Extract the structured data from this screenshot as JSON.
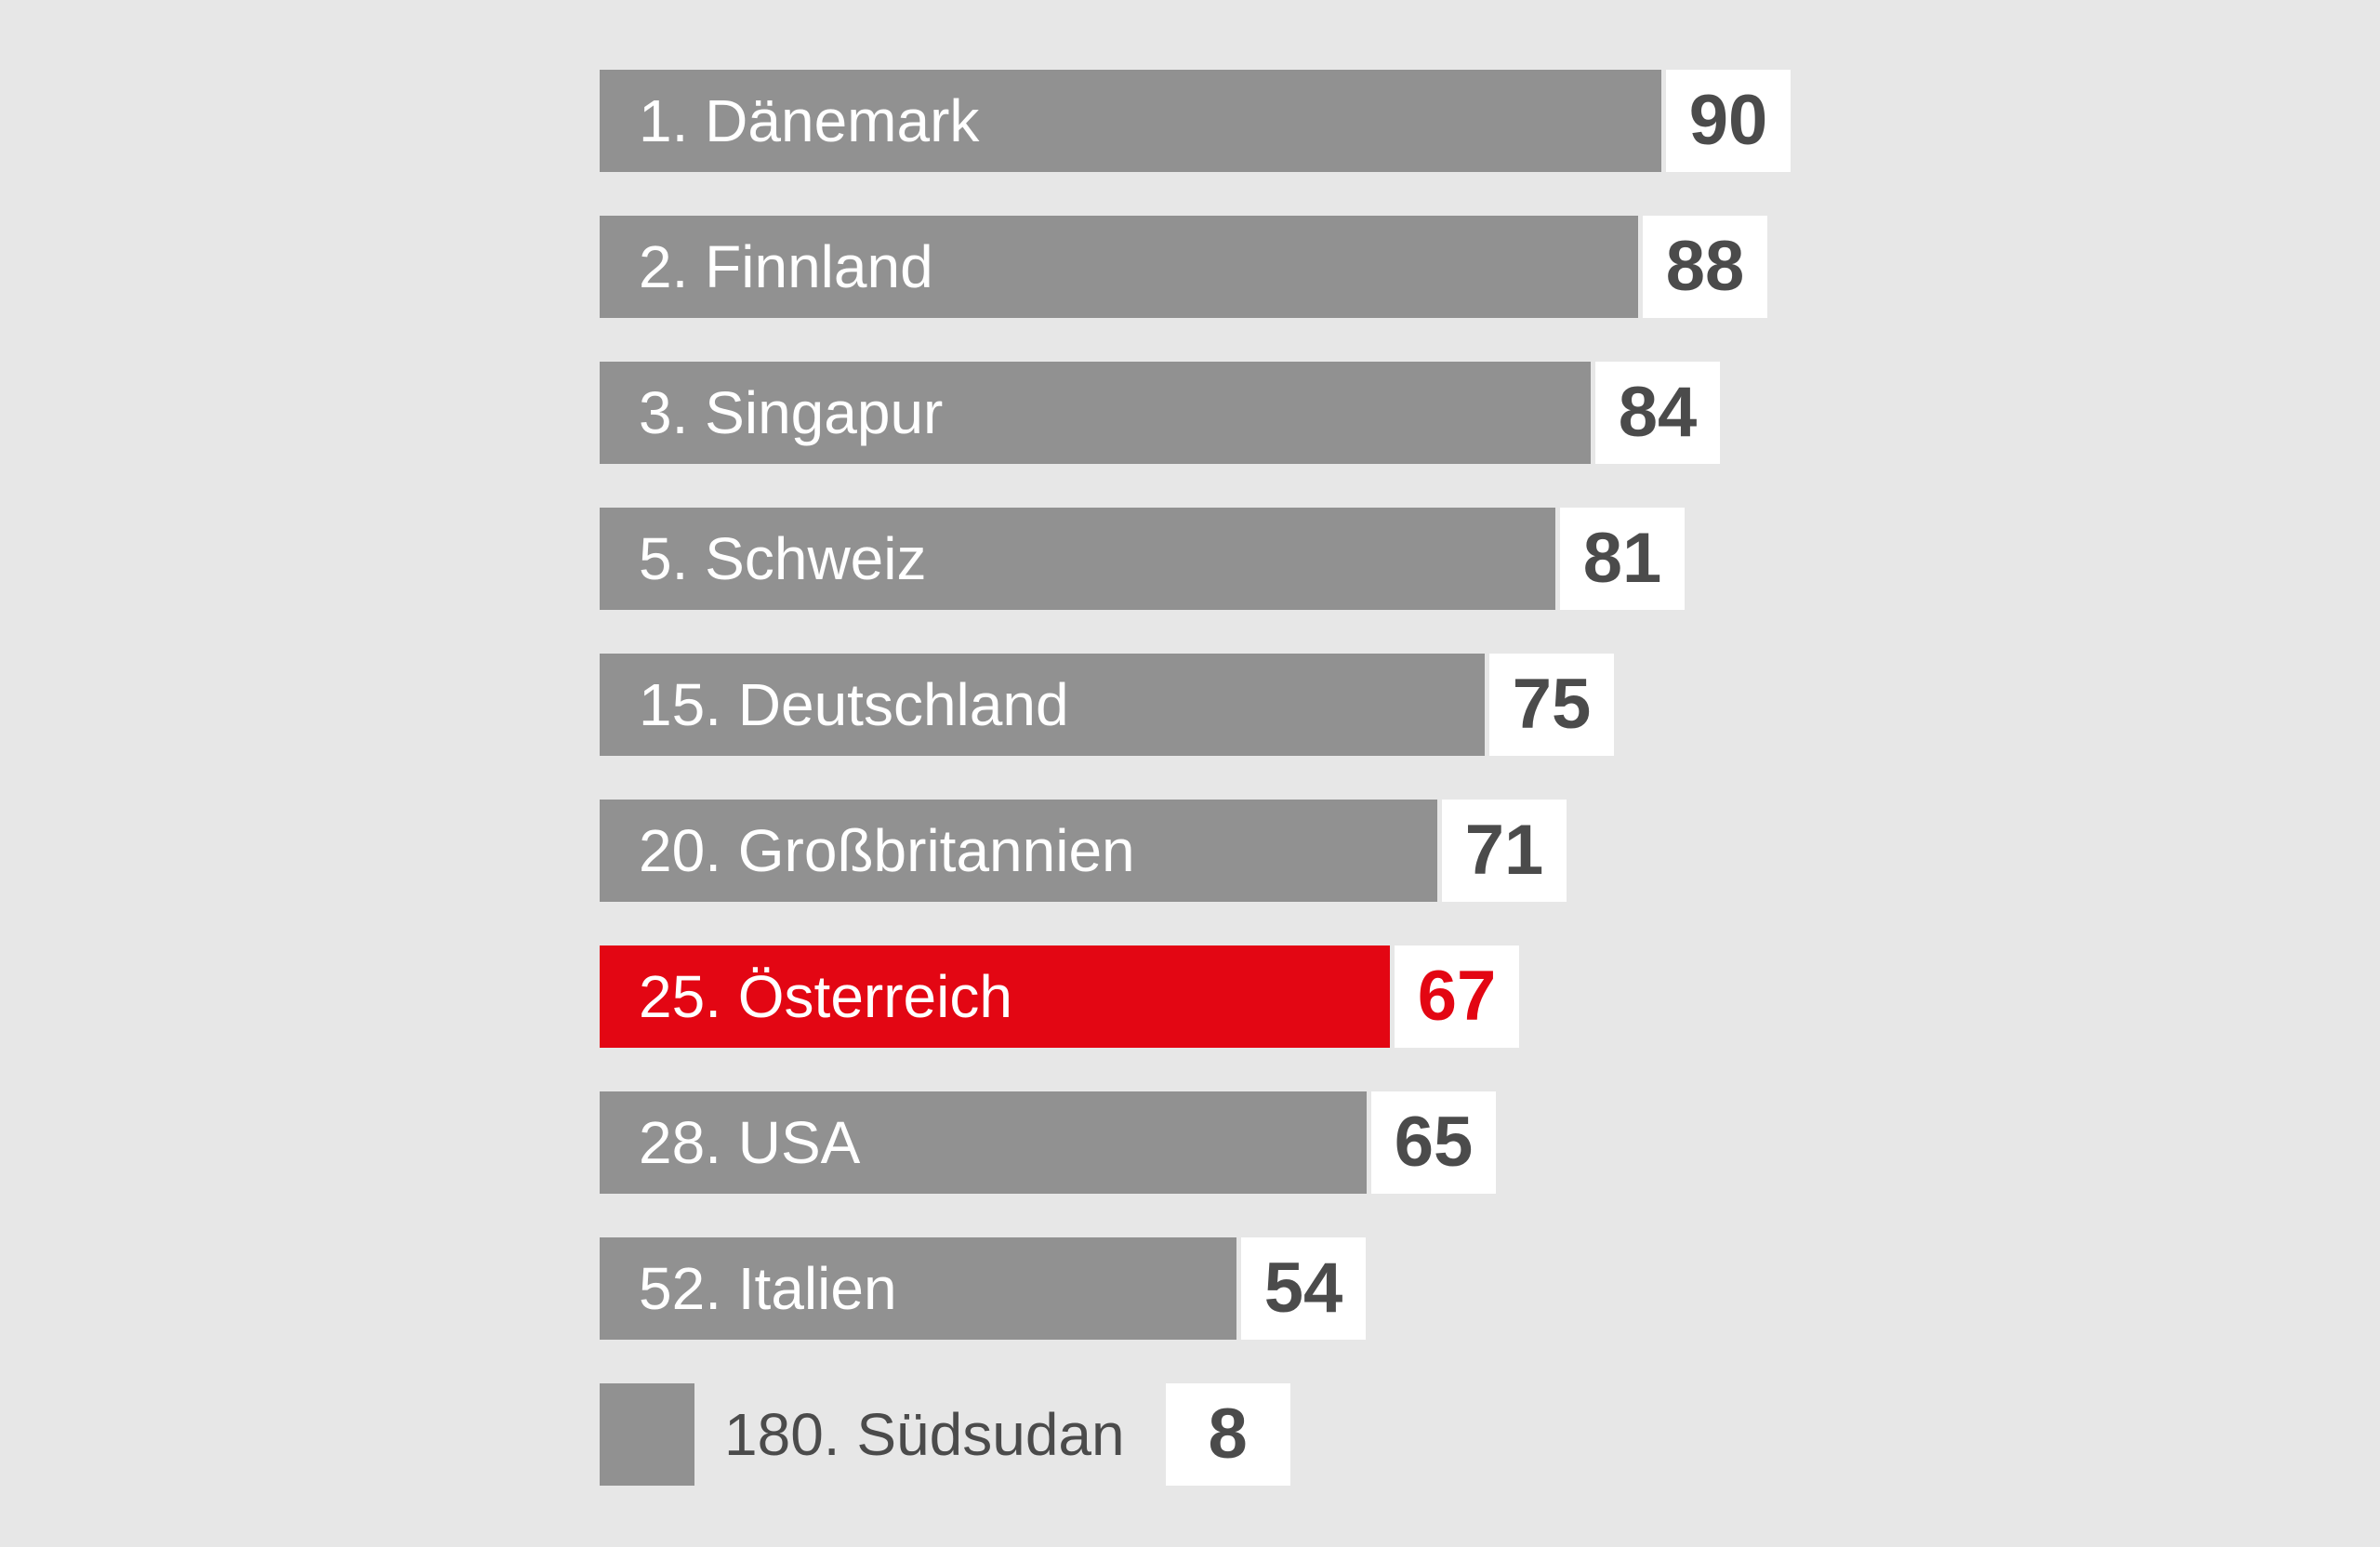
{
  "chart_data": {
    "type": "bar",
    "orientation": "horizontal",
    "title": "",
    "xlabel": "",
    "ylabel": "",
    "value_range": [
      0,
      100
    ],
    "grid": false,
    "legend": false,
    "categories": [
      "1. Dänemark",
      "2. Finnland",
      "3. Singapur",
      "5. Schweiz",
      "15. Deutschland",
      "20. Großbritannien",
      "25. Österreich",
      "28. USA",
      "52. Italien",
      "180. Südsudan"
    ],
    "values": [
      90,
      88,
      84,
      81,
      75,
      71,
      67,
      65,
      54,
      8
    ],
    "items": [
      {
        "label": "1. Dänemark",
        "value": 90,
        "highlight": false,
        "label_outside": false
      },
      {
        "label": "2. Finnland",
        "value": 88,
        "highlight": false,
        "label_outside": false
      },
      {
        "label": "3. Singapur",
        "value": 84,
        "highlight": false,
        "label_outside": false
      },
      {
        "label": "5. Schweiz",
        "value": 81,
        "highlight": false,
        "label_outside": false
      },
      {
        "label": "15. Deutschland",
        "value": 75,
        "highlight": false,
        "label_outside": false
      },
      {
        "label": "20. Großbritannien",
        "value": 71,
        "highlight": false,
        "label_outside": false
      },
      {
        "label": "25. Österreich",
        "value": 67,
        "highlight": true,
        "label_outside": false
      },
      {
        "label": "28. USA",
        "value": 65,
        "highlight": false,
        "label_outside": false
      },
      {
        "label": "52. Italien",
        "value": 54,
        "highlight": false,
        "label_outside": false
      },
      {
        "label": "180. Südsudan",
        "value": 8,
        "highlight": false,
        "label_outside": true
      }
    ],
    "colors": {
      "background": "#e7e7e7",
      "bar": "#919191",
      "bar_highlight": "#e30613",
      "bar_label": "#ffffff",
      "outside_label": "#4b4b4b",
      "value": "#4b4b4b",
      "value_highlight": "#e30613",
      "value_box_background": "#ffffff"
    }
  }
}
